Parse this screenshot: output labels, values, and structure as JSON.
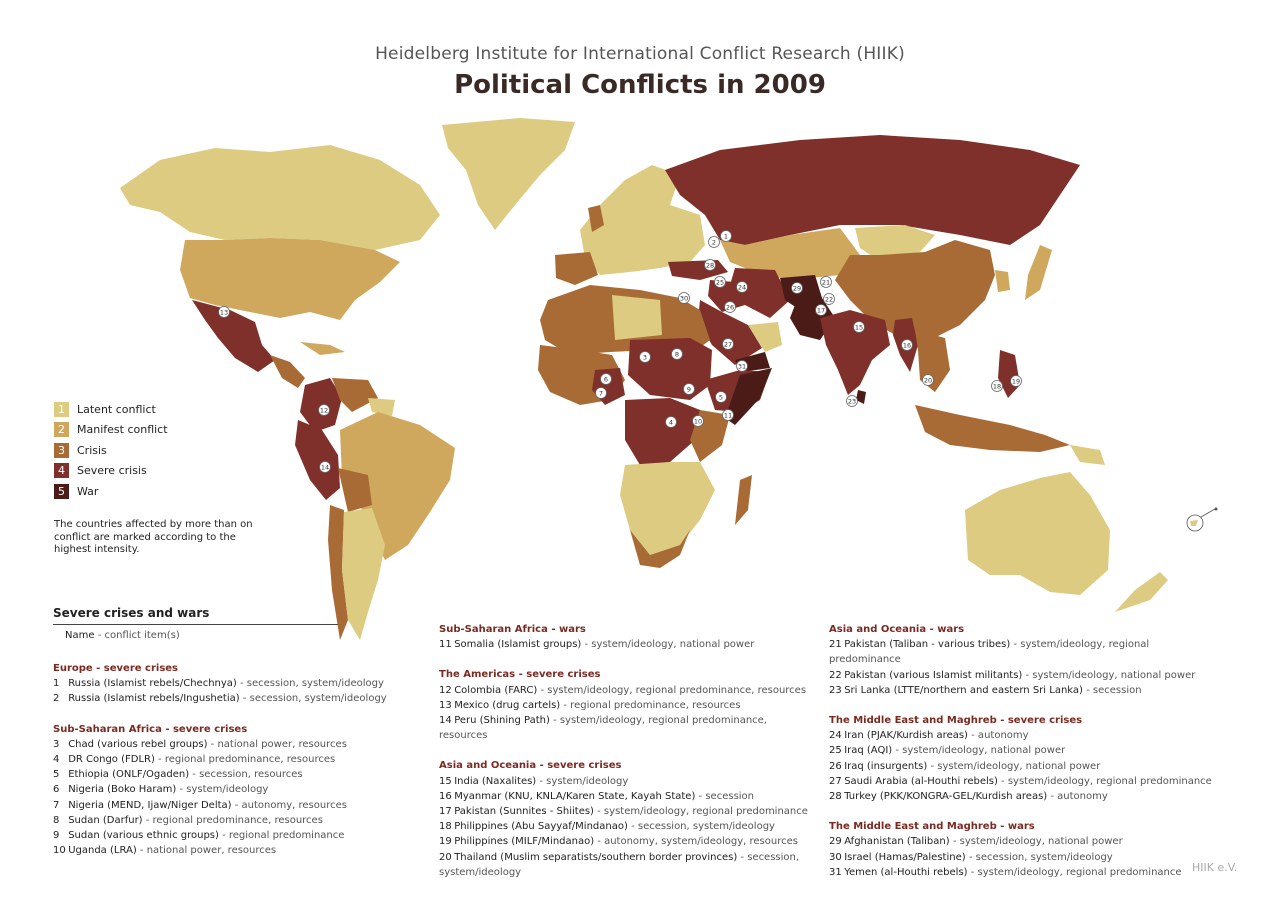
{
  "header": {
    "subtitle": "Heidelberg Institute for International Conflict Research (HIIK)",
    "title": "Political Conflicts in 2009"
  },
  "colors": {
    "level1": "#dccb80",
    "level2": "#cfa85d",
    "level3": "#a86b35",
    "level4": "#7f302a",
    "level5": "#4a1b17"
  },
  "legend": [
    {
      "num": "1",
      "label": "Latent conflict"
    },
    {
      "num": "2",
      "label": "Manifest conflict"
    },
    {
      "num": "3",
      "label": "Crisis"
    },
    {
      "num": "4",
      "label": "Severe crisis"
    },
    {
      "num": "5",
      "label": "War"
    }
  ],
  "legend_note": "The countries affected by more than on conflict  are marked according to the highest intensity.",
  "severe_list": {
    "title": "Severe crises and wars",
    "key_name": "Name",
    "key_rest": " - conflict item(s)",
    "sections": [
      {
        "title": "Europe - severe crises",
        "items": [
          {
            "num": "1",
            "name": "Russia (Islamist rebels/Chechnya)",
            "items": " - secession, system/ideology"
          },
          {
            "num": "2",
            "name": "Russia (Islamist rebels/Ingushetia)",
            "items": " - secession, system/ideology"
          }
        ]
      },
      {
        "title": "Sub-Saharan Africa - severe crises",
        "items": [
          {
            "num": "3",
            "name": "Chad (various rebel groups)",
            "items": " - national power, resources"
          },
          {
            "num": "4",
            "name": "DR Congo (FDLR)",
            "items": " - regional predominance, resources"
          },
          {
            "num": "5",
            "name": "Ethiopia (ONLF/Ogaden)",
            "items": " - secession, resources"
          },
          {
            "num": "6",
            "name": "Nigeria (Boko Haram)",
            "items": " - system/ideology"
          },
          {
            "num": "7",
            "name": "Nigeria (MEND, Ijaw/Niger Delta)",
            "items": " - autonomy, resources"
          },
          {
            "num": "8",
            "name": "Sudan (Darfur)",
            "items": " - regional predominance, resources"
          },
          {
            "num": "9",
            "name": "Sudan (various ethnic groups)",
            "items": " - regional predominance"
          },
          {
            "num": "10",
            "name": "Uganda (LRA)",
            "items": " - national power, resources"
          }
        ]
      },
      {
        "title": "Sub-Saharan Africa - wars",
        "items": [
          {
            "num": "11",
            "name": "Somalia (Islamist groups)",
            "items": " - system/ideology, national power"
          }
        ]
      },
      {
        "title": "The Americas - severe crises",
        "items": [
          {
            "num": "12",
            "name": "Colombia (FARC)",
            "items": " - system/ideology, regional predominance, resources"
          },
          {
            "num": "13",
            "name": "Mexico (drug cartels)",
            "items": " - regional predominance, resources"
          },
          {
            "num": "14",
            "name": "Peru (Shining Path)",
            "items": " - system/ideology, regional predominance, resources"
          }
        ]
      },
      {
        "title": "Asia and Oceania - severe crises",
        "items": [
          {
            "num": "15",
            "name": "India (Naxalites)",
            "items": " - system/ideology"
          },
          {
            "num": "16",
            "name": "Myanmar (KNU, KNLA/Karen State, Kayah State)",
            "items": " - secession"
          },
          {
            "num": "17",
            "name": "Pakistan (Sunnites - Shiites)",
            "items": " - system/ideology, regional predominance"
          },
          {
            "num": "18",
            "name": "Philippines (Abu Sayyaf/Mindanao)",
            "items": " - secession, system/ideology"
          },
          {
            "num": "19",
            "name": "Philippines (MILF/Mindanao)",
            "items": " - autonomy, system/ideology, resources"
          },
          {
            "num": "20",
            "name": "Thailand (Muslim separatists/southern border provinces)",
            "items": " - secession, system/ideology"
          }
        ]
      },
      {
        "title": "Asia and Oceania - wars",
        "items": [
          {
            "num": "21",
            "name": "Pakistan (Taliban - various tribes)",
            "items": " - system/ideology, regional predominance"
          },
          {
            "num": "22",
            "name": "Pakistan (various Islamist militants)",
            "items": " - system/ideology, national power"
          },
          {
            "num": "23",
            "name": "Sri Lanka (LTTE/northern and eastern Sri Lanka)",
            "items": " - secession"
          }
        ]
      },
      {
        "title": "The Middle East and Maghreb - severe crises",
        "items": [
          {
            "num": "24",
            "name": "Iran (PJAK/Kurdish areas)",
            "items": " - autonomy"
          },
          {
            "num": "25",
            "name": "Iraq (AQI)",
            "items": " - system/ideology, national power"
          },
          {
            "num": "26",
            "name": "Iraq (insurgents)",
            "items": " - system/ideology, national power"
          },
          {
            "num": "27",
            "name": "Saudi Arabia (al-Houthi rebels)",
            "items": " - system/ideology, regional predominance"
          },
          {
            "num": "28",
            "name": "Turkey (PKK/KONGRA-GEL/Kurdish areas)",
            "items": " - autonomy"
          }
        ]
      },
      {
        "title": "The Middle East and Maghreb - wars",
        "items": [
          {
            "num": "29",
            "name": "Afghanistan (Taliban)",
            "items": " - system/ideology, national power"
          },
          {
            "num": "30",
            "name": "Israel (Hamas/Palestine)",
            "items": " - secession, system/ideology"
          },
          {
            "num": "31",
            "name": "Yemen (al-Houthi rebels)",
            "items": " - system/ideology, regional predominance"
          }
        ]
      }
    ]
  },
  "credit": "HIIK e.V."
}
